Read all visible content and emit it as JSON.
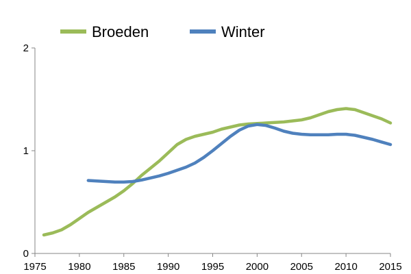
{
  "chart_data": {
    "type": "line",
    "title": "",
    "xlabel": "",
    "ylabel": "",
    "xlim": [
      1975,
      2015
    ],
    "ylim": [
      0,
      2
    ],
    "xticks": [
      1975,
      1980,
      1985,
      1990,
      1995,
      2000,
      2005,
      2010,
      2015
    ],
    "yticks": [
      0,
      1,
      2
    ],
    "grid": false,
    "legend": "top",
    "series": [
      {
        "name": "Broeden",
        "color": "#9bbb59",
        "x": [
          1976,
          1977,
          1978,
          1979,
          1980,
          1981,
          1982,
          1983,
          1984,
          1985,
          1986,
          1987,
          1988,
          1989,
          1990,
          1991,
          1992,
          1993,
          1994,
          1995,
          1996,
          1997,
          1998,
          1999,
          2000,
          2001,
          2002,
          2003,
          2004,
          2005,
          2006,
          2007,
          2008,
          2009,
          2010,
          2011,
          2012,
          2013,
          2014,
          2015
        ],
        "y": [
          0.18,
          0.2,
          0.23,
          0.28,
          0.34,
          0.4,
          0.45,
          0.5,
          0.55,
          0.61,
          0.68,
          0.76,
          0.83,
          0.9,
          0.98,
          1.06,
          1.11,
          1.14,
          1.16,
          1.18,
          1.21,
          1.23,
          1.25,
          1.26,
          1.265,
          1.27,
          1.275,
          1.28,
          1.29,
          1.3,
          1.32,
          1.35,
          1.38,
          1.4,
          1.41,
          1.4,
          1.37,
          1.34,
          1.31,
          1.27
        ]
      },
      {
        "name": "Winter",
        "color": "#4f81bd",
        "x": [
          1981,
          1982,
          1983,
          1984,
          1985,
          1986,
          1987,
          1988,
          1989,
          1990,
          1991,
          1992,
          1993,
          1994,
          1995,
          1996,
          1997,
          1998,
          1999,
          2000,
          2001,
          2002,
          2003,
          2004,
          2005,
          2006,
          2007,
          2008,
          2009,
          2010,
          2011,
          2012,
          2013,
          2014,
          2015
        ],
        "y": [
          0.71,
          0.705,
          0.7,
          0.695,
          0.695,
          0.7,
          0.715,
          0.735,
          0.755,
          0.78,
          0.81,
          0.84,
          0.88,
          0.935,
          1.0,
          1.07,
          1.14,
          1.2,
          1.24,
          1.255,
          1.245,
          1.22,
          1.19,
          1.17,
          1.16,
          1.155,
          1.155,
          1.155,
          1.16,
          1.16,
          1.15,
          1.13,
          1.11,
          1.085,
          1.06
        ]
      }
    ]
  }
}
